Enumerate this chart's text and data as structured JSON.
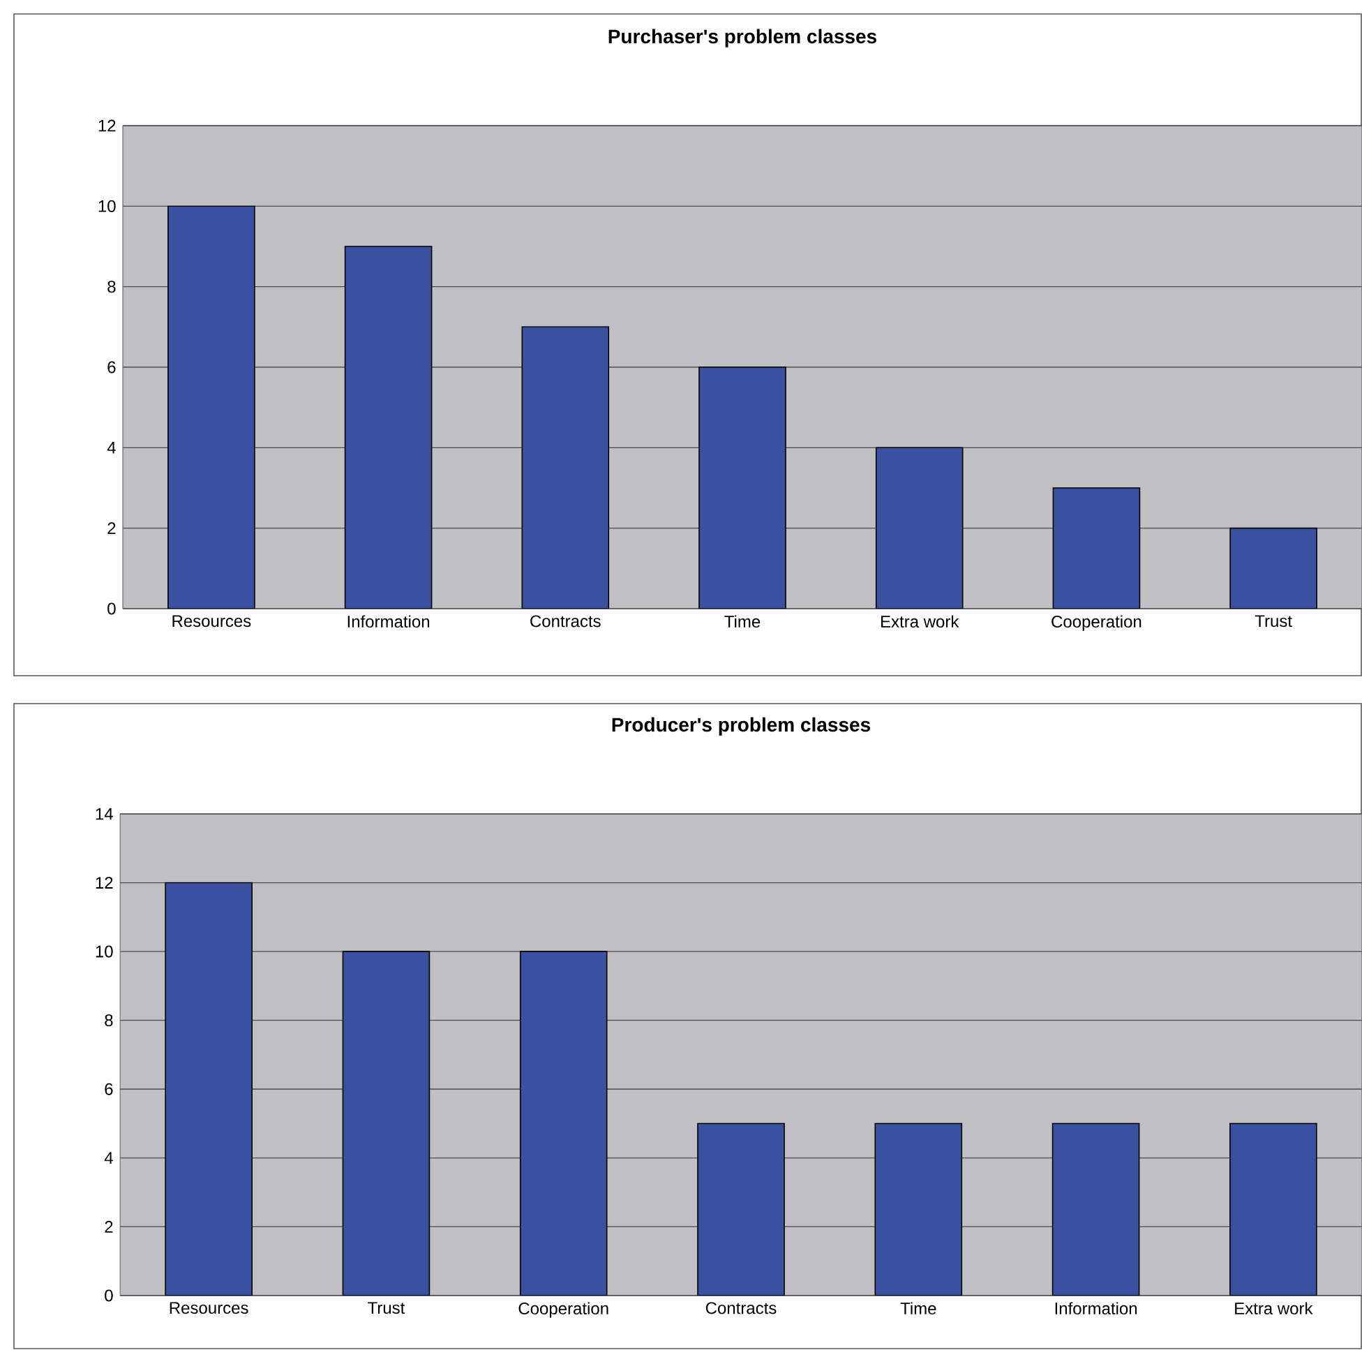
{
  "chart_data": [
    {
      "type": "bar",
      "title": "Purchaser's problem  classes",
      "categories": [
        "Resources",
        "Information",
        "Contracts",
        "Time",
        "Extra work",
        "Cooperation",
        "Trust"
      ],
      "values": [
        10,
        9,
        7,
        6,
        4,
        3,
        2
      ],
      "color": "#3a51a2",
      "ylim": [
        0,
        12
      ],
      "yticks": [
        0,
        2,
        4,
        6,
        8,
        10,
        12
      ],
      "grid": "y"
    },
    {
      "type": "bar",
      "title": "Producer's problem  classes",
      "categories": [
        "Resources",
        "Trust",
        "Cooperation",
        "Contracts",
        "Time",
        "Information",
        "Extra work"
      ],
      "values": [
        12,
        10,
        10,
        5,
        5,
        5,
        5
      ],
      "color": "#3a51a2",
      "ylim": [
        0,
        14
      ],
      "yticks": [
        0,
        2,
        4,
        6,
        8,
        10,
        12,
        14
      ],
      "grid": "y"
    }
  ]
}
